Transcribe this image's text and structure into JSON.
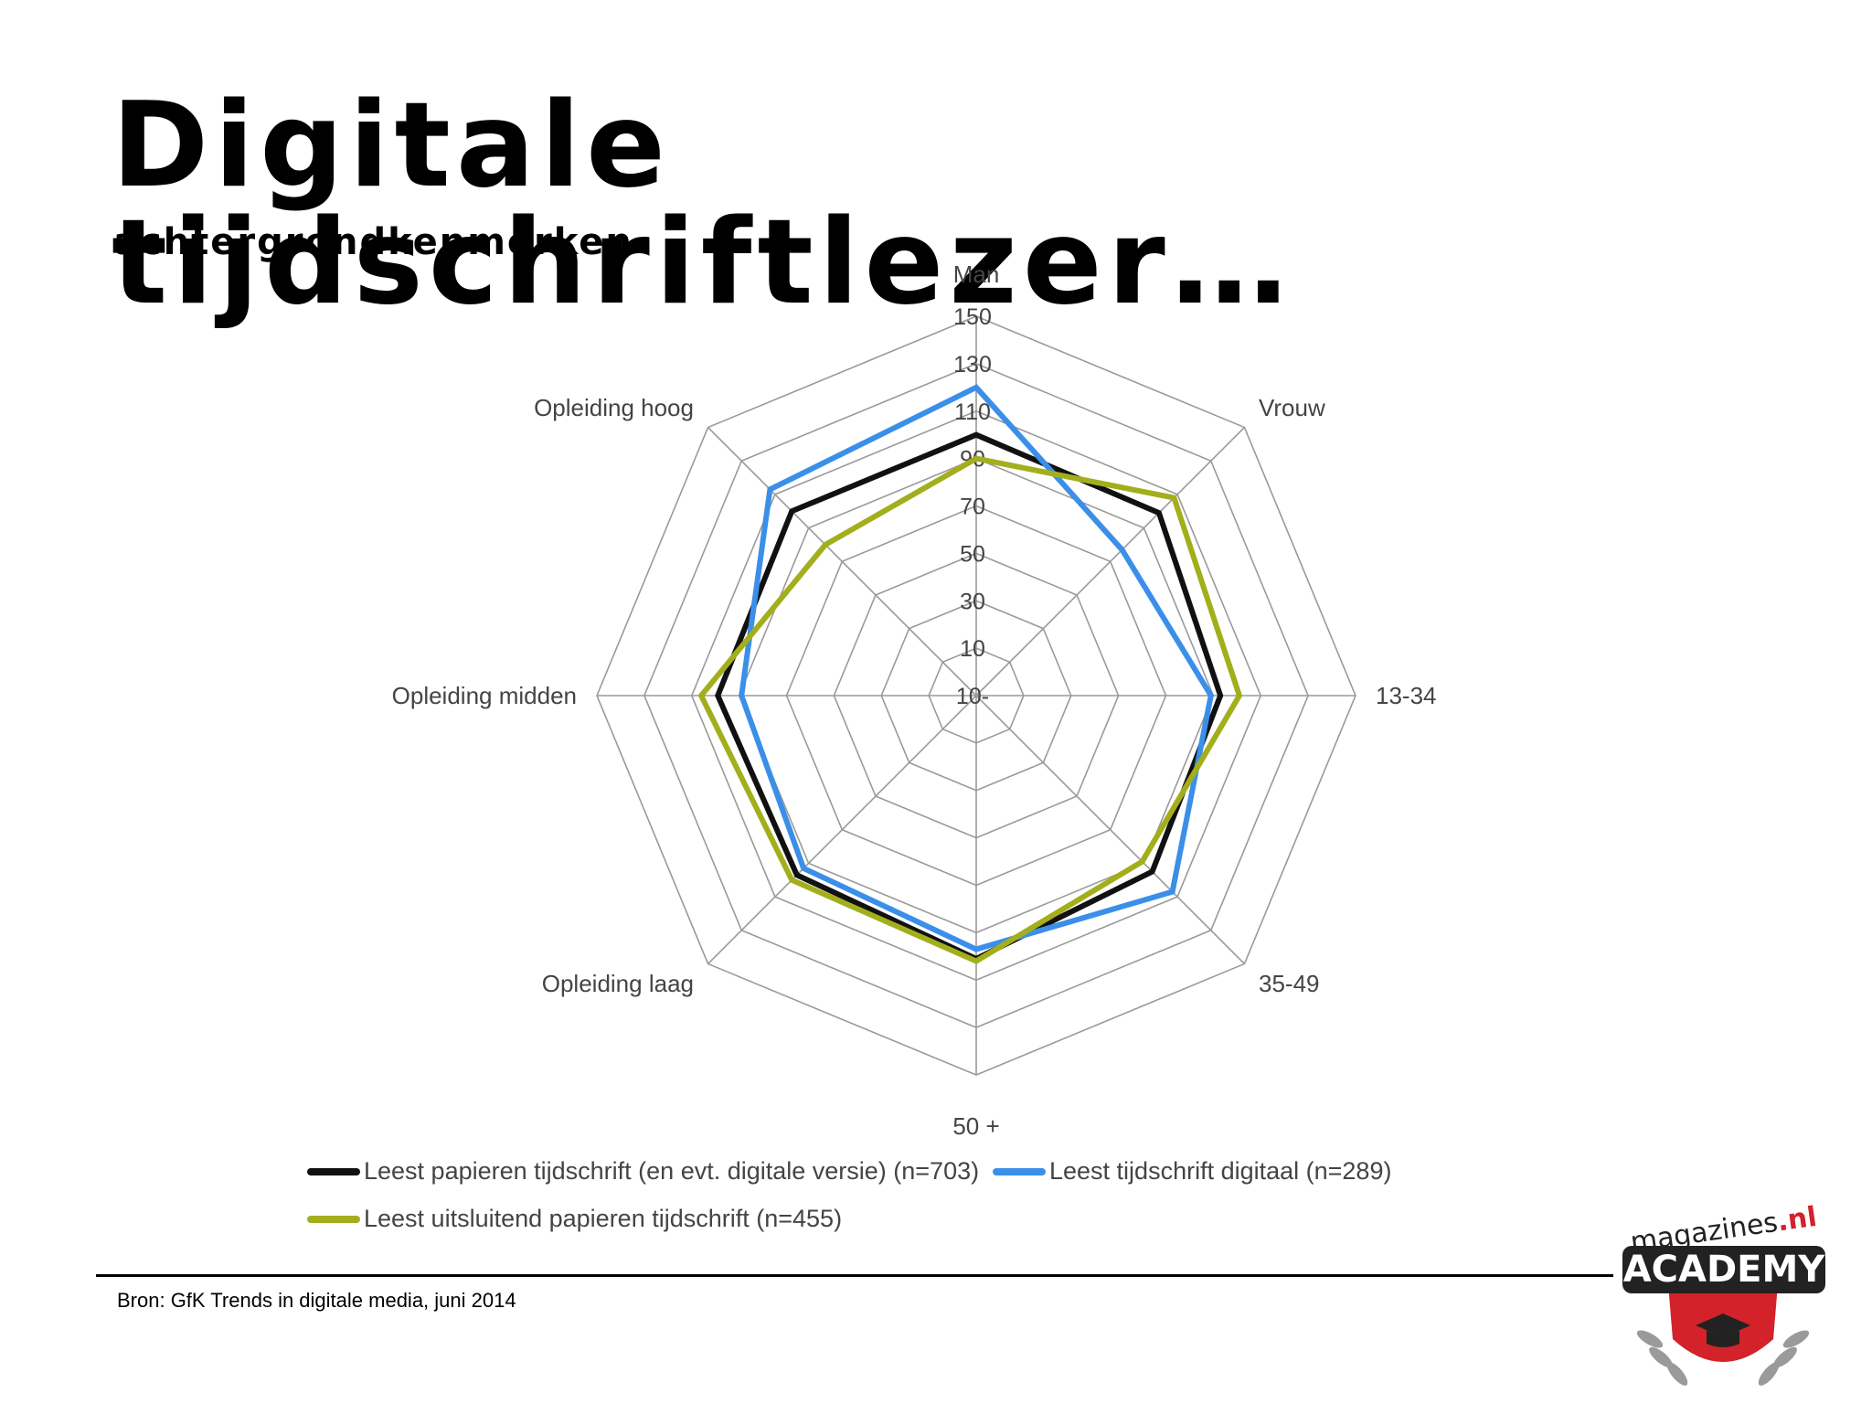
{
  "title": "Digitale tijdschriftlezer…",
  "subtitle": "achtergrondkenmerken",
  "source": "Bron: GfK Trends in digitale media, juni 2014",
  "logo": {
    "wordmark": "magazines",
    "tld": ".nl",
    "badge": "ACADEMY",
    "colors": {
      "red": "#d3222a",
      "dark": "#222222",
      "grey": "#9a9a9a"
    }
  },
  "chart_data": {
    "type": "radar",
    "axes": [
      "Man",
      "Vrouw",
      "13-34",
      "35-49",
      "50 +",
      "Opleiding laag",
      "Opleiding midden",
      "Opleiding hoog"
    ],
    "scale": {
      "min": -10,
      "max": 150,
      "step": 20
    },
    "tick_labels": [
      "10-",
      "10",
      "30",
      "50",
      "70",
      "90",
      "110",
      "130",
      "150"
    ],
    "grid": true,
    "legend_position": "bottom",
    "series": [
      {
        "name": "Leest papieren tijdschrift (en evt. digitale versie) (n=703)",
        "color": "#111111",
        "values": [
          100,
          99,
          93,
          95,
          101,
          97,
          99,
          100
        ]
      },
      {
        "name": "Leest tijdschrift digitaal (n=289)",
        "color": "#3b8fe8",
        "values": [
          120,
          77,
          89,
          107,
          97,
          93,
          89,
          113
        ]
      },
      {
        "name": "Leest uitsluitend papieren tijdschrift (n=455)",
        "color": "#a3ae1c",
        "values": [
          90,
          108,
          101,
          89,
          102,
          100,
          106,
          80
        ]
      }
    ]
  }
}
